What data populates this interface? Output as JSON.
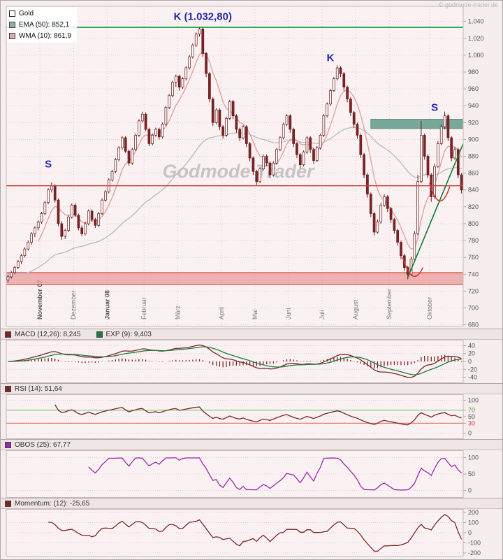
{
  "window": {
    "copyright": "© godmode-trader.de"
  },
  "watermark": "Godmode Trader",
  "colors": {
    "candle": "#67191c",
    "candle_up_fill": "#fdf7f7",
    "candle_down_fill": "#7d2426",
    "ema": "#bdbdbd",
    "wma": "#e39a9a",
    "ema_swatch": "#8fb0a5",
    "wma_swatch": "#e8a7a7",
    "macd": "#7d2426",
    "signal": "#1c7a3c",
    "rsi": "#7d2426",
    "obos": "#9c27b0",
    "momentum": "#7d2426",
    "resistance_green": "#0f9d44",
    "trendline": "#0e7c34",
    "support_red": "#d03931",
    "band_teal": "#79a89a",
    "band_teal_edge": "#55907e",
    "band_red": "#eb9a9a",
    "band_red_edge": "#cc3a33",
    "annotation_blue": "#2428a8",
    "watermark_gray": "#8f8f8f",
    "rsi_upper_line": "#7ed07e",
    "rsi_lower_line": "#e07a6a",
    "grid": "#e2cccc",
    "axis_text": "#555555"
  },
  "chart_data": {
    "type": "candlestick+indicators",
    "title": "Gold",
    "main": {
      "legend": {
        "gold": "Gold",
        "ema": "EMA (50): 852,1",
        "wma": "WMA (10): 861,9"
      },
      "ylim": [
        680,
        1040
      ],
      "ytick_step": 20,
      "x_months": [
        {
          "label": "November 07",
          "idx": 10,
          "bold": true
        },
        {
          "label": "Dezember",
          "idx": 20,
          "bold": false
        },
        {
          "label": "Januar 08",
          "idx": 30,
          "bold": true
        },
        {
          "label": "Februar",
          "idx": 41,
          "bold": false
        },
        {
          "label": "März",
          "idx": 51,
          "bold": false
        },
        {
          "label": "April",
          "idx": 64,
          "bold": false
        },
        {
          "label": "Mai",
          "idx": 74,
          "bold": false
        },
        {
          "label": "Juni",
          "idx": 84,
          "bold": false
        },
        {
          "label": "Juli",
          "idx": 94,
          "bold": false
        },
        {
          "label": "August",
          "idx": 104,
          "bold": false
        },
        {
          "label": "September",
          "idx": 114,
          "bold": false
        },
        {
          "label": "Oktober",
          "idx": 126,
          "bold": false
        }
      ],
      "levels": {
        "resistance_k": 1033,
        "support_s": 845,
        "teal_band": {
          "from_idx": 108,
          "top": 924,
          "bottom": 913
        },
        "red_band": {
          "top": 742,
          "bottom": 728
        },
        "trendline": {
          "from": {
            "idx": 119,
            "price": 736
          },
          "to": {
            "idx": 135.5,
            "price": 895
          }
        }
      },
      "annotations": [
        {
          "text": "K (1.032,80)",
          "idx": 58,
          "price": 1046
        },
        {
          "text": "K",
          "idx": 96,
          "price": 997
        },
        {
          "text": "S",
          "idx": 12,
          "price": 871
        },
        {
          "text": "S",
          "idx": 127,
          "price": 938
        }
      ],
      "arc_marks": [
        {
          "from": {
            "idx": 117.5,
            "price": 760
          },
          "ctrl": {
            "idx": 120.5,
            "price": 722
          },
          "to": {
            "idx": 123.5,
            "price": 748
          }
        },
        {
          "from": {
            "idx": 125.5,
            "price": 848
          },
          "ctrl": {
            "idx": 128.5,
            "price": 808
          },
          "to": {
            "idx": 131.5,
            "price": 844
          }
        }
      ],
      "candles_ohlc": [
        [
          733,
          739,
          730,
          737
        ],
        [
          737,
          744,
          735,
          742
        ],
        [
          742,
          750,
          740,
          748
        ],
        [
          748,
          757,
          746,
          755
        ],
        [
          755,
          764,
          752,
          762
        ],
        [
          762,
          772,
          760,
          770
        ],
        [
          770,
          780,
          768,
          778
        ],
        [
          778,
          790,
          775,
          788
        ],
        [
          788,
          797,
          784,
          795
        ],
        [
          795,
          804,
          792,
          802
        ],
        [
          802,
          814,
          800,
          812
        ],
        [
          812,
          827,
          810,
          825
        ],
        [
          825,
          842,
          823,
          840
        ],
        [
          840,
          849,
          837,
          845
        ],
        [
          845,
          847,
          825,
          828
        ],
        [
          828,
          830,
          797,
          800
        ],
        [
          800,
          803,
          781,
          785
        ],
        [
          785,
          794,
          782,
          792
        ],
        [
          792,
          810,
          790,
          808
        ],
        [
          808,
          824,
          806,
          822
        ],
        [
          822,
          824,
          808,
          810
        ],
        [
          810,
          812,
          792,
          795
        ],
        [
          795,
          798,
          785,
          788
        ],
        [
          788,
          802,
          786,
          800
        ],
        [
          800,
          817,
          798,
          815
        ],
        [
          815,
          817,
          802,
          805
        ],
        [
          805,
          807,
          795,
          798
        ],
        [
          798,
          814,
          796,
          812
        ],
        [
          812,
          830,
          810,
          828
        ],
        [
          828,
          840,
          826,
          838
        ],
        [
          838,
          854,
          836,
          852
        ],
        [
          852,
          864,
          850,
          862
        ],
        [
          862,
          878,
          860,
          876
        ],
        [
          876,
          892,
          874,
          890
        ],
        [
          890,
          904,
          888,
          902
        ],
        [
          902,
          904,
          884,
          886
        ],
        [
          886,
          888,
          869,
          872
        ],
        [
          872,
          890,
          870,
          888
        ],
        [
          888,
          907,
          886,
          905
        ],
        [
          905,
          924,
          903,
          922
        ],
        [
          922,
          933,
          920,
          930
        ],
        [
          930,
          932,
          910,
          912
        ],
        [
          912,
          914,
          892,
          895
        ],
        [
          895,
          907,
          893,
          905
        ],
        [
          905,
          914,
          903,
          912
        ],
        [
          912,
          914,
          900,
          903
        ],
        [
          903,
          920,
          901,
          918
        ],
        [
          918,
          940,
          916,
          938
        ],
        [
          938,
          954,
          936,
          952
        ],
        [
          952,
          970,
          950,
          968
        ],
        [
          968,
          977,
          962,
          975
        ],
        [
          975,
          977,
          958,
          962
        ],
        [
          962,
          974,
          960,
          972
        ],
        [
          972,
          987,
          970,
          985
        ],
        [
          985,
          1000,
          983,
          998
        ],
        [
          998,
          1014,
          996,
          1012
        ],
        [
          1012,
          1027,
          1010,
          1025
        ],
        [
          1025,
          1032.8,
          1022,
          1031
        ],
        [
          1031,
          1033,
          998,
          1002
        ],
        [
          1002,
          1004,
          974,
          978
        ],
        [
          978,
          980,
          944,
          948
        ],
        [
          948,
          950,
          916,
          920
        ],
        [
          920,
          937,
          918,
          935
        ],
        [
          935,
          937,
          911,
          915
        ],
        [
          915,
          917,
          901,
          905
        ],
        [
          905,
          927,
          903,
          925
        ],
        [
          925,
          947,
          923,
          945
        ],
        [
          945,
          947,
          924,
          928
        ],
        [
          928,
          930,
          908,
          912
        ],
        [
          912,
          914,
          898,
          902
        ],
        [
          902,
          917,
          900,
          915
        ],
        [
          915,
          917,
          891,
          895
        ],
        [
          895,
          897,
          874,
          878
        ],
        [
          878,
          880,
          858,
          862
        ],
        [
          862,
          864,
          846,
          850
        ],
        [
          850,
          867,
          848,
          865
        ],
        [
          865,
          882,
          863,
          880
        ],
        [
          880,
          882,
          868,
          872
        ],
        [
          872,
          874,
          854,
          858
        ],
        [
          858,
          874,
          856,
          872
        ],
        [
          872,
          890,
          870,
          888
        ],
        [
          888,
          904,
          886,
          902
        ],
        [
          902,
          920,
          900,
          918
        ],
        [
          918,
          930,
          916,
          928
        ],
        [
          928,
          930,
          908,
          912
        ],
        [
          912,
          914,
          891,
          895
        ],
        [
          895,
          897,
          878,
          882
        ],
        [
          882,
          884,
          866,
          870
        ],
        [
          870,
          887,
          868,
          885
        ],
        [
          885,
          904,
          883,
          902
        ],
        [
          902,
          904,
          884,
          888
        ],
        [
          888,
          890,
          871,
          875
        ],
        [
          875,
          892,
          873,
          890
        ],
        [
          890,
          907,
          888,
          905
        ],
        [
          905,
          930,
          903,
          928
        ],
        [
          928,
          944,
          926,
          942
        ],
        [
          942,
          960,
          940,
          958
        ],
        [
          958,
          974,
          956,
          972
        ],
        [
          972,
          988,
          970,
          985
        ],
        [
          985,
          987,
          974,
          978
        ],
        [
          978,
          980,
          958,
          962
        ],
        [
          962,
          964,
          944,
          948
        ],
        [
          948,
          950,
          928,
          932
        ],
        [
          932,
          934,
          914,
          918
        ],
        [
          918,
          920,
          901,
          905
        ],
        [
          905,
          907,
          878,
          882
        ],
        [
          882,
          884,
          854,
          858
        ],
        [
          858,
          860,
          831,
          835
        ],
        [
          835,
          837,
          808,
          812
        ],
        [
          812,
          814,
          786,
          790
        ],
        [
          790,
          805,
          788,
          802
        ],
        [
          802,
          825,
          800,
          822
        ],
        [
          822,
          835,
          820,
          832
        ],
        [
          832,
          834,
          814,
          818
        ],
        [
          818,
          820,
          801,
          805
        ],
        [
          805,
          807,
          788,
          792
        ],
        [
          792,
          794,
          774,
          778
        ],
        [
          778,
          780,
          758,
          762
        ],
        [
          762,
          764,
          744,
          748
        ],
        [
          748,
          750,
          734,
          740
        ],
        [
          740,
          761,
          738,
          758
        ],
        [
          758,
          791,
          756,
          788
        ],
        [
          788,
          858,
          786,
          850
        ],
        [
          850,
          922,
          848,
          905
        ],
        [
          905,
          907,
          876,
          880
        ],
        [
          880,
          882,
          854,
          858
        ],
        [
          858,
          860,
          826,
          832
        ],
        [
          832,
          871,
          830,
          868
        ],
        [
          868,
          898,
          866,
          895
        ],
        [
          895,
          918,
          893,
          915
        ],
        [
          915,
          933,
          912,
          928
        ],
        [
          928,
          930,
          898,
          902
        ],
        [
          902,
          904,
          874,
          878
        ],
        [
          878,
          891,
          876,
          888
        ],
        [
          888,
          890,
          854,
          858
        ],
        [
          858,
          860,
          836,
          840
        ]
      ],
      "series_derivation": "EMA(50), WMA(10), MACD(12,26,9), RSI(14), OBOS(25), Momentum(12) are computed from candles_ohlc"
    },
    "indicators": [
      {
        "id": "macd",
        "type": "line+histogram",
        "label": "MACD (12,26): 8,245",
        "signal_label": "EXP (9): 9,403",
        "fast": 12,
        "slow": 26,
        "signal": 9,
        "last": 8.245,
        "signal_last": 9.403,
        "yticks": [
          40,
          20,
          0,
          -20,
          -40
        ]
      },
      {
        "id": "rsi",
        "type": "line",
        "label": "RSI (14): 51,64",
        "period": 14,
        "last": 51.64,
        "upper": 70,
        "lower": 30,
        "yticks": [
          100,
          70,
          50,
          30,
          0
        ]
      },
      {
        "id": "obos",
        "type": "line",
        "label": "OBOS (25): 67,77",
        "period": 25,
        "last": 67.77,
        "yticks": [
          100,
          50,
          0
        ]
      },
      {
        "id": "momentum",
        "type": "line",
        "label": "Momentum: (12): -25,65",
        "period": 12,
        "last": -25.65,
        "yticks": [
          200,
          100,
          0,
          -100,
          -200
        ]
      }
    ]
  }
}
